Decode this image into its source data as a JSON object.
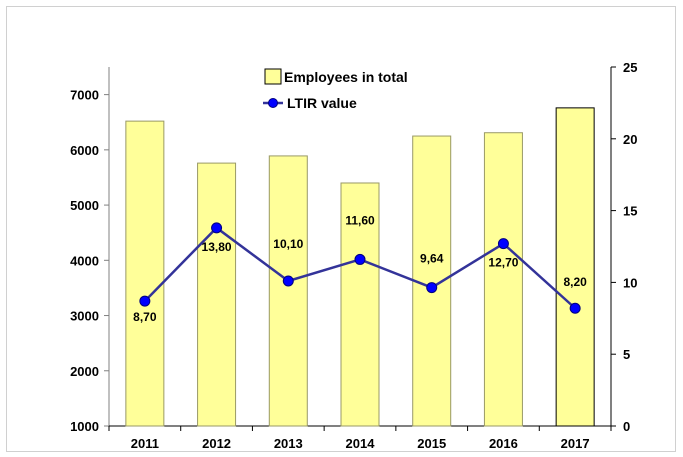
{
  "chart_data": {
    "type": "bar",
    "categories": [
      "2011",
      "2012",
      "2013",
      "2014",
      "2015",
      "2016",
      "2017"
    ],
    "series": [
      {
        "name": "Employees in total",
        "type": "bar",
        "axis": "left",
        "values": [
          6520,
          5760,
          5890,
          5400,
          6250,
          6310,
          6760
        ]
      },
      {
        "name": "LTIR value",
        "type": "line",
        "axis": "right",
        "values": [
          8.7,
          13.8,
          10.1,
          11.6,
          9.64,
          12.7,
          8.2
        ],
        "labels": [
          "8,70",
          "13,80",
          "10,10",
          "11,60",
          "9,64",
          "12,70",
          "8,20"
        ]
      }
    ],
    "ylim_left": [
      1000,
      7500
    ],
    "yticks_left": [
      "1000",
      "2000",
      "3000",
      "4000",
      "5000",
      "6000",
      "7000"
    ],
    "ylim_right": [
      0,
      25
    ],
    "yticks_right": [
      "0",
      "5",
      "10",
      "15",
      "20",
      "25"
    ],
    "grid": false,
    "legend_position": "top-center",
    "colors": {
      "bar_fill": "#ffff99",
      "bar_stroke": "#999966",
      "last_bar_stroke": "#000000",
      "line": "#333399",
      "marker": "#0000ff"
    }
  }
}
